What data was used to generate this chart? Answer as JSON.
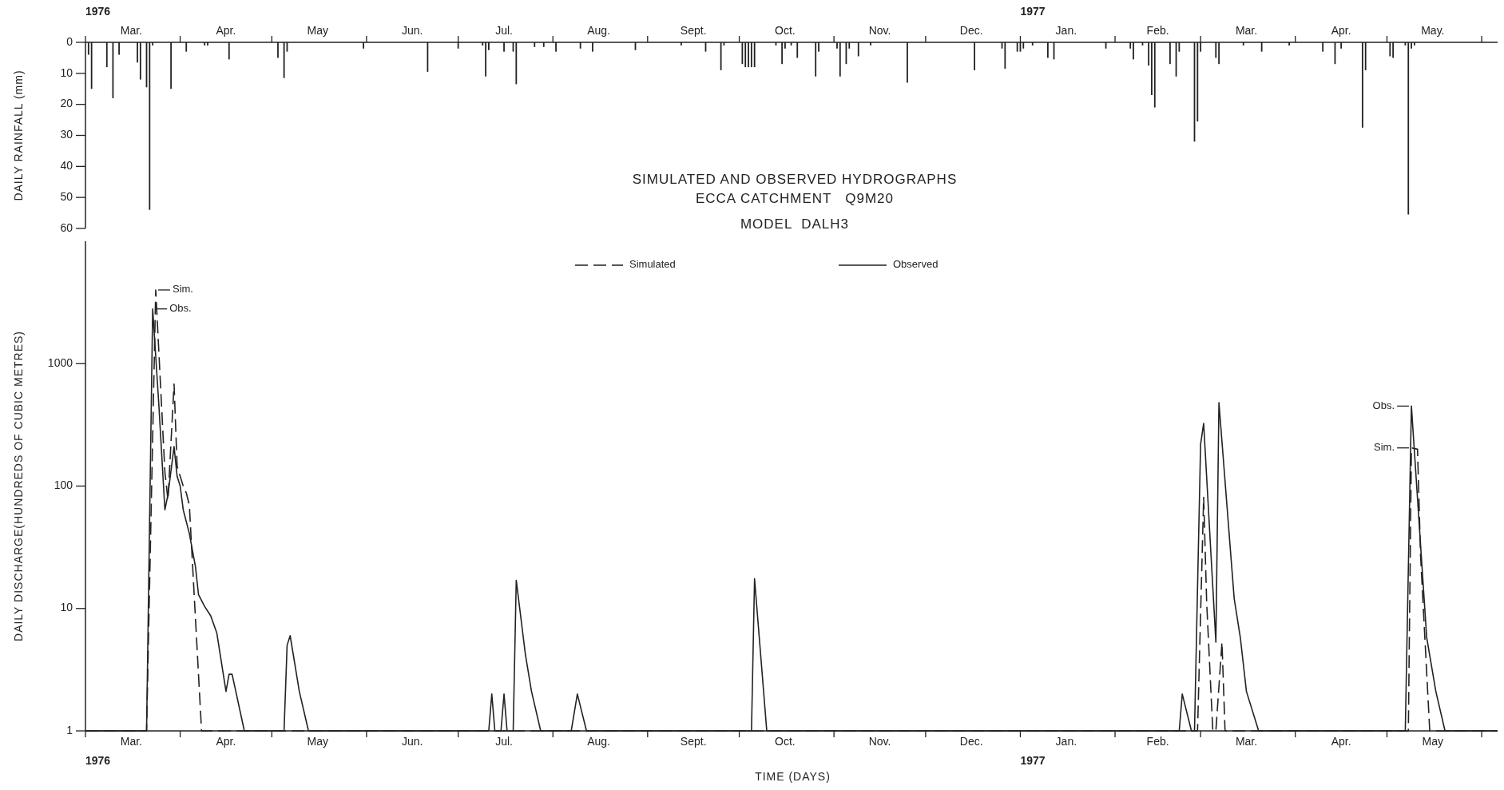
{
  "chart_data": [
    {
      "type": "bar",
      "ylabel": "DAILY RAINFALL (mm)",
      "xlim": [
        "1976-03-01",
        "1977-06-07"
      ],
      "ylim": [
        60,
        0
      ],
      "yticks": [
        0,
        10,
        20,
        30,
        40,
        50,
        60
      ],
      "xticks": [
        {
          "value": "1976-03-01",
          "label": null
        },
        {
          "value": "1976-03-16",
          "label": "Mar."
        },
        {
          "value": "1976-04-01",
          "label": null
        },
        {
          "value": "1976-04-16",
          "label": "Apr."
        },
        {
          "value": "1976-05-01",
          "label": null
        },
        {
          "value": "1976-05-16",
          "label": "May"
        },
        {
          "value": "1976-06-01",
          "label": null
        },
        {
          "value": "1976-06-16",
          "label": "Jun."
        },
        {
          "value": "1976-07-01",
          "label": null
        },
        {
          "value": "1976-07-16",
          "label": "Jul."
        },
        {
          "value": "1976-08-01",
          "label": null
        },
        {
          "value": "1976-08-16",
          "label": "Aug."
        },
        {
          "value": "1976-09-01",
          "label": null
        },
        {
          "value": "1976-09-16",
          "label": "Sept."
        },
        {
          "value": "1976-10-01",
          "label": null
        },
        {
          "value": "1976-10-16",
          "label": "Oct."
        },
        {
          "value": "1976-11-01",
          "label": null
        },
        {
          "value": "1976-11-16",
          "label": "Nov."
        },
        {
          "value": "1976-12-01",
          "label": null
        },
        {
          "value": "1976-12-16",
          "label": "Dec."
        },
        {
          "value": "1977-01-01",
          "label": null
        },
        {
          "value": "1977-01-16",
          "label": "Jan."
        },
        {
          "value": "1977-02-01",
          "label": null
        },
        {
          "value": "1977-02-15",
          "label": "Feb."
        },
        {
          "value": "1977-03-01",
          "label": null
        },
        {
          "value": "1977-03-16",
          "label": "Mar."
        },
        {
          "value": "1977-04-01",
          "label": null
        },
        {
          "value": "1977-04-16",
          "label": "Apr."
        },
        {
          "value": "1977-05-01",
          "label": null
        },
        {
          "value": "1977-05-16",
          "label": "May."
        },
        {
          "value": "1977-06-01",
          "label": null
        }
      ],
      "annotations": [
        "1976",
        "1977"
      ],
      "x": [
        "1976-03-02",
        "1976-03-03",
        "1976-03-08",
        "1976-03-10",
        "1976-03-12",
        "1976-03-18",
        "1976-03-19",
        "1976-03-21",
        "1976-03-22",
        "1976-03-23",
        "1976-03-29",
        "1976-04-03",
        "1976-04-09",
        "1976-04-10",
        "1976-04-17",
        "1976-05-03",
        "1976-05-05",
        "1976-05-06",
        "1976-05-31",
        "1976-06-21",
        "1976-07-01",
        "1976-07-09",
        "1976-07-10",
        "1976-07-11",
        "1976-07-16",
        "1976-07-19",
        "1976-07-20",
        "1976-07-26",
        "1976-07-29",
        "1976-08-02",
        "1976-08-10",
        "1976-08-14",
        "1976-08-28",
        "1976-09-12",
        "1976-09-20",
        "1976-09-25",
        "1976-09-26",
        "1976-10-02",
        "1976-10-03",
        "1976-10-04",
        "1976-10-05",
        "1976-10-06",
        "1976-10-13",
        "1976-10-15",
        "1976-10-16",
        "1976-10-18",
        "1976-10-20",
        "1976-10-26",
        "1976-10-27",
        "1976-11-02",
        "1976-11-03",
        "1976-11-05",
        "1976-11-06",
        "1976-11-09",
        "1976-11-13",
        "1976-11-25",
        "1976-12-17",
        "1976-12-26",
        "1976-12-27",
        "1976-12-31",
        "1977-01-01",
        "1977-01-02",
        "1977-01-05",
        "1977-01-10",
        "1977-01-12",
        "1977-01-29",
        "1977-02-06",
        "1977-02-07",
        "1977-02-10",
        "1977-02-12",
        "1977-02-13",
        "1977-02-14",
        "1977-02-19",
        "1977-02-21",
        "1977-02-22",
        "1977-02-27",
        "1977-02-28",
        "1977-03-01",
        "1977-03-06",
        "1977-03-07",
        "1977-03-15",
        "1977-03-21",
        "1977-03-30",
        "1977-04-10",
        "1977-04-14",
        "1977-04-16",
        "1977-04-23",
        "1977-04-24",
        "1977-05-02",
        "1977-05-03",
        "1977-05-07",
        "1977-05-08",
        "1977-05-09",
        "1977-05-10"
      ],
      "values": [
        4,
        15,
        8,
        18,
        4,
        6.5,
        12,
        14.5,
        54,
        1,
        15,
        3,
        1,
        1,
        5.5,
        5,
        11.5,
        3,
        2,
        9.5,
        2,
        1,
        11,
        2.5,
        3,
        3,
        13.5,
        1.5,
        1.5,
        3,
        2,
        3,
        2.5,
        1,
        3,
        9,
        1,
        7,
        8,
        8,
        8,
        8,
        1,
        7,
        2,
        1,
        5,
        11,
        3,
        2,
        11,
        7,
        2,
        4.5,
        1,
        13,
        9,
        2,
        8.5,
        3,
        3,
        2,
        1,
        5,
        5.5,
        2,
        2,
        5.5,
        1,
        7.5,
        17,
        21,
        7,
        11,
        3,
        32,
        25.5,
        3,
        5,
        7,
        1,
        3,
        1,
        3,
        7,
        2,
        27.5,
        9,
        4.5,
        5,
        1,
        55.5,
        2,
        1
      ],
      "color": "#222222"
    },
    {
      "type": "line",
      "title": "SIMULATED AND OBSERVED HYDROGRAPHS\nECCA CATCHMENT   Q9M20",
      "subtitle": "MODEL  DALH3",
      "xlabel": "TIME (DAYS)",
      "ylabel": "DAILY DISCHARGE(HUNDREDS OF CUBIC METRES)",
      "log": true,
      "legend": "top",
      "xlim": [
        "1976-03-01",
        "1977-06-07"
      ],
      "ylim": [
        1,
        10000
      ],
      "yticks": [
        1,
        10,
        100,
        1000
      ],
      "xticks": [
        {
          "value": "1976-03-01",
          "label": null
        },
        {
          "value": "1976-03-16",
          "label": "Mar."
        },
        {
          "value": "1976-04-01",
          "label": null
        },
        {
          "value": "1976-04-16",
          "label": "Apr."
        },
        {
          "value": "1976-05-01",
          "label": null
        },
        {
          "value": "1976-05-16",
          "label": "May"
        },
        {
          "value": "1976-06-01",
          "label": null
        },
        {
          "value": "1976-06-16",
          "label": "Jun."
        },
        {
          "value": "1976-07-01",
          "label": null
        },
        {
          "value": "1976-07-16",
          "label": "Jul."
        },
        {
          "value": "1976-08-01",
          "label": null
        },
        {
          "value": "1976-08-16",
          "label": "Aug."
        },
        {
          "value": "1976-09-01",
          "label": null
        },
        {
          "value": "1976-09-16",
          "label": "Sept."
        },
        {
          "value": "1976-10-01",
          "label": null
        },
        {
          "value": "1976-10-16",
          "label": "Oct."
        },
        {
          "value": "1976-11-01",
          "label": null
        },
        {
          "value": "1976-11-16",
          "label": "Nov."
        },
        {
          "value": "1976-12-01",
          "label": null
        },
        {
          "value": "1976-12-16",
          "label": "Dec."
        },
        {
          "value": "1977-01-01",
          "label": null
        },
        {
          "value": "1977-01-16",
          "label": "Jan."
        },
        {
          "value": "1977-02-01",
          "label": null
        },
        {
          "value": "1977-02-15",
          "label": "Feb."
        },
        {
          "value": "1977-03-01",
          "label": null
        },
        {
          "value": "1977-03-16",
          "label": "Mar."
        },
        {
          "value": "1977-04-01",
          "label": null
        },
        {
          "value": "1977-04-16",
          "label": "Apr."
        },
        {
          "value": "1977-05-01",
          "label": null
        },
        {
          "value": "1977-05-16",
          "label": "May"
        },
        {
          "value": "1977-06-01",
          "label": null
        }
      ],
      "annotations": [
        "1976",
        "1977",
        {
          "text": "Sim.",
          "x": "1976-03-24",
          "y": 4000
        },
        {
          "text": "Obs.",
          "x": "1976-03-23",
          "y": 2800
        },
        {
          "text": "Obs.",
          "x": "1977-05-09",
          "y": 450
        },
        {
          "text": "Sim.",
          "x": "1977-05-09",
          "y": 205
        }
      ],
      "series": [
        {
          "name": "Simulated",
          "color": "#222222",
          "line_style": "dashed",
          "x": [
            "1976-03-01",
            "1976-03-21",
            "1976-03-24",
            "1976-03-27",
            "1976-03-28",
            "1976-03-30",
            "1976-03-31",
            "1976-04-02",
            "1976-04-03",
            "1976-04-04",
            "1976-04-05",
            "1976-04-08",
            "1977-02-28",
            "1977-03-02",
            "1977-03-03",
            "1977-03-05",
            "1977-03-06",
            "1977-03-08",
            "1977-03-09",
            "1977-05-08",
            "1977-05-09",
            "1977-05-11",
            "1977-05-12",
            "1977-05-15",
            "1977-06-07"
          ],
          "values": [
            1,
            1,
            4000,
            130,
            77,
            680,
            145,
            100,
            88,
            70,
            24,
            1,
            1,
            81,
            11,
            1,
            1,
            5.3,
            1,
            1,
            205,
            200,
            27,
            1,
            1
          ]
        },
        {
          "name": "Observed",
          "color": "#222222",
          "line_style": "solid",
          "x": [
            "1976-03-01",
            "1976-03-21",
            "1976-03-23",
            "1976-03-25",
            "1976-03-27",
            "1976-03-28",
            "1976-03-30",
            "1976-03-31",
            "1976-04-01",
            "1976-04-02",
            "1976-04-04",
            "1976-04-06",
            "1976-04-07",
            "1976-04-09",
            "1976-04-11",
            "1976-04-13",
            "1976-04-16",
            "1976-04-17",
            "1976-04-18",
            "1976-04-22",
            "1976-05-05",
            "1976-05-06",
            "1976-05-07",
            "1976-05-10",
            "1976-05-13",
            "1976-07-11",
            "1976-07-12",
            "1976-07-13",
            "1976-07-15",
            "1976-07-16",
            "1976-07-17",
            "1976-07-19",
            "1976-07-20",
            "1976-07-23",
            "1976-07-25",
            "1976-07-28",
            "1976-08-07",
            "1976-08-09",
            "1976-08-12",
            "1976-10-05",
            "1976-10-06",
            "1976-10-10",
            "1977-02-22",
            "1977-02-23",
            "1977-02-26",
            "1977-02-27",
            "1977-03-01",
            "1977-03-02",
            "1977-03-06",
            "1977-03-07",
            "1977-03-12",
            "1977-03-14",
            "1977-03-16",
            "1977-03-20",
            "1977-05-07",
            "1977-05-09",
            "1977-05-14",
            "1977-05-17",
            "1977-05-20",
            "1977-06-07"
          ],
          "values": [
            1,
            1,
            2800,
            470,
            64,
            85,
            210,
            120,
            100,
            64,
            41,
            22,
            13,
            10.4,
            8.7,
            6.3,
            2.1,
            2.9,
            2.9,
            1,
            1,
            5,
            6,
            2.1,
            1,
            1,
            2,
            1,
            1,
            2,
            1,
            1,
            17,
            4.2,
            2.1,
            1,
            1,
            2,
            1,
            1,
            17.5,
            1,
            1,
            2,
            1,
            1,
            220,
            325,
            5.3,
            480,
            12,
            5.8,
            2.1,
            1,
            1,
            450,
            5.8,
            2.1,
            1,
            1
          ]
        }
      ]
    }
  ]
}
